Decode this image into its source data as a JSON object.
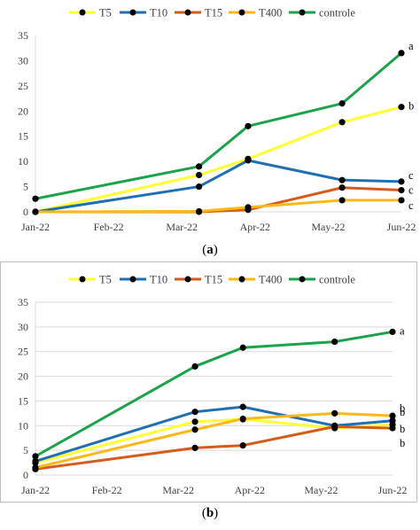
{
  "colors": {
    "T5": "#ffff33",
    "T10": "#1f6fb5",
    "T15": "#d65a1a",
    "T400": "#ffb81a",
    "controle": "#1aa34a",
    "marker": "#000000",
    "axis": "#d9d9d9"
  },
  "labels": {
    "a": "a",
    "b": "b"
  },
  "chart_data": [
    {
      "type": "line",
      "panel": "a",
      "categories": [
        "Jan-22",
        "Feb-22",
        "Mar-22",
        "Apr-22",
        "May-22",
        "Jun-22"
      ],
      "ylim": [
        0,
        35
      ],
      "yticks": [
        0,
        5,
        10,
        15,
        20,
        25,
        30,
        35
      ],
      "legend": "top",
      "grid": false,
      "series": [
        {
          "name": "T5",
          "x": [
            "2022-01-01",
            "2022-03-22",
            "2022-04-15",
            "2022-05-31",
            "2022-06-29"
          ],
          "values": [
            0,
            7.3,
            10.5,
            17.8,
            20.8
          ],
          "letter": "b"
        },
        {
          "name": "T10",
          "x": [
            "2022-01-01",
            "2022-03-22",
            "2022-04-15",
            "2022-05-31",
            "2022-06-29"
          ],
          "values": [
            0,
            5,
            10.2,
            6.3,
            6
          ],
          "letter": "c"
        },
        {
          "name": "T15",
          "x": [
            "2022-01-01",
            "2022-03-22",
            "2022-04-15",
            "2022-05-31",
            "2022-06-29"
          ],
          "values": [
            0,
            0,
            0.4,
            4.8,
            4.3
          ],
          "letter": "c"
        },
        {
          "name": "T400",
          "x": [
            "2022-01-01",
            "2022-03-22",
            "2022-04-15",
            "2022-05-31",
            "2022-06-29"
          ],
          "values": [
            0,
            0.1,
            0.9,
            2.3,
            2.3
          ],
          "letter": "c"
        },
        {
          "name": "controle",
          "x": [
            "2022-01-01",
            "2022-03-22",
            "2022-04-15",
            "2022-05-31",
            "2022-06-29"
          ],
          "values": [
            2.6,
            9,
            17,
            21.5,
            31.5
          ],
          "letter": "a"
        }
      ]
    },
    {
      "type": "line",
      "panel": "b",
      "categories": [
        "Jan-22",
        "Feb-22",
        "Mar-22",
        "Apr-22",
        "May-22",
        "Jun-22"
      ],
      "ylim": [
        0,
        35
      ],
      "yticks": [
        0,
        5,
        10,
        15,
        20,
        25,
        30,
        35
      ],
      "legend": "top",
      "grid": true,
      "series": [
        {
          "name": "T5",
          "x": [
            "2022-01-01",
            "2022-03-22",
            "2022-04-15",
            "2022-05-31",
            "2022-06-29"
          ],
          "values": [
            2.5,
            10.8,
            11.3,
            9.5,
            10.2
          ],
          "letter": "b"
        },
        {
          "name": "T10",
          "x": [
            "2022-01-01",
            "2022-03-22",
            "2022-04-15",
            "2022-05-31",
            "2022-06-29"
          ],
          "values": [
            2.8,
            12.8,
            13.8,
            10,
            11
          ],
          "letter": "b"
        },
        {
          "name": "T15",
          "x": [
            "2022-01-01",
            "2022-03-22",
            "2022-04-15",
            "2022-05-31",
            "2022-06-29"
          ],
          "values": [
            1.2,
            5.5,
            6,
            9.8,
            9.5
          ],
          "letter": "b"
        },
        {
          "name": "T400",
          "x": [
            "2022-01-01",
            "2022-03-22",
            "2022-04-15",
            "2022-05-31",
            "2022-06-29"
          ],
          "values": [
            1.5,
            9.2,
            11.4,
            12.5,
            12
          ],
          "letter": "b"
        },
        {
          "name": "controle",
          "x": [
            "2022-01-01",
            "2022-03-22",
            "2022-04-15",
            "2022-05-31",
            "2022-06-29"
          ],
          "values": [
            3.8,
            22,
            25.8,
            27,
            29
          ],
          "letter": "a"
        }
      ]
    }
  ]
}
